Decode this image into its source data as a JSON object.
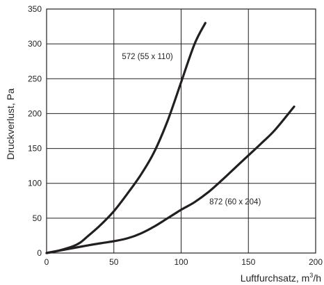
{
  "chart_data": {
    "type": "line",
    "xlabel": "Luftfurchsatz, m³/h",
    "xlabel_main": "Luftfurchsatz, m",
    "xlabel_sup": "3",
    "xlabel_tail": "/h",
    "ylabel": "Druckverlust, Pa",
    "xlim": [
      0,
      200
    ],
    "ylim": [
      0,
      350
    ],
    "xticks": [
      0,
      50,
      100,
      150,
      200
    ],
    "yticks": [
      0,
      50,
      100,
      150,
      200,
      250,
      300,
      350
    ],
    "grid": true,
    "series": [
      {
        "name": "572 (55 x 110)",
        "x": [
          0,
          10,
          20,
          25,
          30,
          40,
          50,
          60,
          70,
          80,
          90,
          100,
          110,
          118
        ],
        "y": [
          0,
          4,
          10,
          15,
          23,
          40,
          60,
          85,
          112,
          145,
          190,
          245,
          300,
          330
        ]
      },
      {
        "name": "872 (60 x 204)",
        "x": [
          0,
          25,
          40,
          50,
          60,
          70,
          80,
          90,
          100,
          110,
          120,
          130,
          140,
          150,
          160,
          170,
          184
        ],
        "y": [
          0,
          9,
          14,
          17,
          21,
          28,
          38,
          50,
          62,
          73,
          87,
          104,
          122,
          140,
          158,
          177,
          210
        ]
      }
    ],
    "annotations": [
      {
        "text": "572 (55 x 110)",
        "x": 56,
        "y": 278
      },
      {
        "text": "872 (60 x 204)",
        "x": 121,
        "y": 70
      }
    ]
  }
}
